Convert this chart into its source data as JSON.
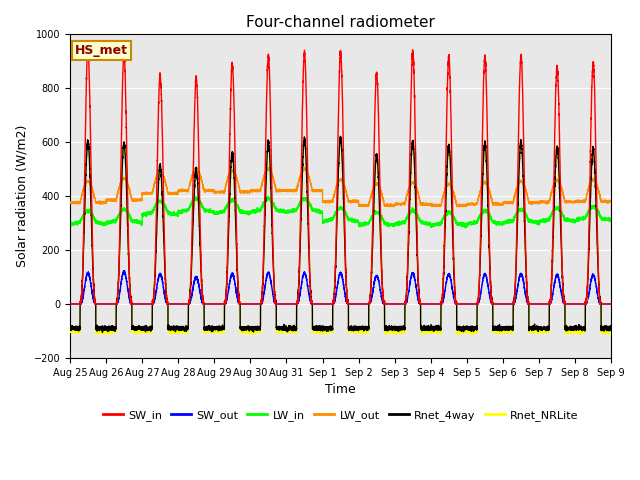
{
  "title": "Four-channel radiometer",
  "xlabel": "Time",
  "ylabel": "Solar radiation (W/m2)",
  "ylim": [
    -200,
    1000
  ],
  "bg_color": "#e8e8e8",
  "fig_color": "#ffffff",
  "station_label": "HS_met",
  "tick_labels": [
    "Aug 25",
    "Aug 26",
    "Aug 27",
    "Aug 28",
    "Aug 29",
    "Aug 30",
    "Aug 31",
    "Sep 1",
    "Sep 2",
    "Sep 3",
    "Sep 4",
    "Sep 5",
    "Sep 6",
    "Sep 7",
    "Sep 8",
    "Sep 9"
  ],
  "colors": {
    "SW_in": "#ff0000",
    "SW_out": "#0000ff",
    "LW_in": "#00ff00",
    "LW_out": "#ff8c00",
    "Rnet_4way": "#000000",
    "Rnet_NRLite": "#ffff00"
  },
  "legend_entries": [
    "SW_in",
    "SW_out",
    "LW_in",
    "LW_out",
    "Rnet_4way",
    "Rnet_NRLite"
  ],
  "n_days": 15,
  "pts_per_day": 480,
  "SW_in_peaks": [
    940,
    920,
    850,
    835,
    890,
    920,
    930,
    930,
    855,
    930,
    910,
    915,
    920,
    880,
    890
  ],
  "SW_out_peaks": [
    115,
    120,
    110,
    100,
    112,
    115,
    115,
    115,
    105,
    115,
    110,
    110,
    112,
    108,
    108
  ],
  "LW_in_base": [
    295,
    300,
    330,
    340,
    335,
    340,
    340,
    305,
    290,
    295,
    290,
    295,
    300,
    305,
    310
  ],
  "LW_out_base": [
    375,
    385,
    410,
    420,
    415,
    420,
    420,
    380,
    365,
    370,
    365,
    370,
    375,
    378,
    380
  ],
  "Rnet_peaks": [
    600,
    595,
    510,
    500,
    560,
    595,
    610,
    615,
    550,
    600,
    590,
    595,
    600,
    580,
    575
  ],
  "Rnet_night_4way": -90,
  "Rnet_night_NRL": -100,
  "day_start": 0.28,
  "day_end": 0.72,
  "lw_line": 1.0,
  "title_fontsize": 11,
  "label_fontsize": 9,
  "tick_fontsize": 7,
  "legend_fontsize": 8
}
